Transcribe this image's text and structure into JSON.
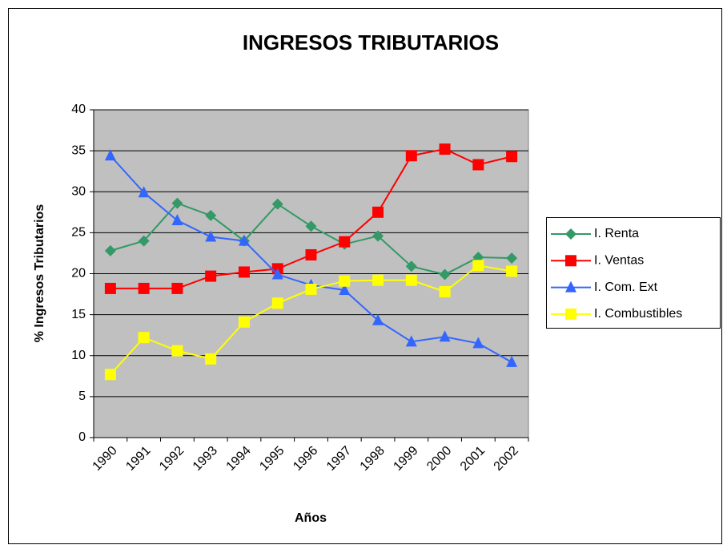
{
  "chart_data": {
    "type": "line",
    "title": "INGRESOS TRIBUTARIOS",
    "x_label": "Años",
    "y_label": "% Ingresos Tributarios",
    "categories": [
      "1990",
      "1991",
      "1992",
      "1993",
      "1994",
      "1995",
      "1996",
      "1997",
      "1998",
      "1999",
      "2000",
      "2001",
      "2002"
    ],
    "series": [
      {
        "name": "I. Renta",
        "color": "#339966",
        "marker": "diamond",
        "values": [
          22.8,
          24,
          28.6,
          27.1,
          24,
          28.5,
          25.8,
          23.6,
          24.6,
          20.9,
          19.9,
          22,
          21.9
        ]
      },
      {
        "name": "I. Ventas",
        "color": "#ff0000",
        "marker": "square",
        "values": [
          18.2,
          18.2,
          18.2,
          19.7,
          20.2,
          20.6,
          22.3,
          23.9,
          27.5,
          34.4,
          35.2,
          33.3,
          34.3
        ]
      },
      {
        "name": "I. Com. Ext",
        "color": "#3366ff",
        "marker": "triangle",
        "values": [
          34.4,
          29.9,
          26.5,
          24.5,
          24,
          19.9,
          18.6,
          18,
          14.3,
          11.7,
          12.3,
          11.5,
          9.2
        ]
      },
      {
        "name": "I. Combustibles",
        "color": "#ffff00",
        "marker": "square",
        "values": [
          7.7,
          12.2,
          10.6,
          9.6,
          14.1,
          16.4,
          18.1,
          19.1,
          19.2,
          19.2,
          17.8,
          21,
          20.3
        ]
      }
    ],
    "ylim": [
      0,
      40
    ],
    "yticks": [
      0,
      5,
      10,
      15,
      20,
      25,
      30,
      35,
      40
    ],
    "grid": true,
    "legend": "right"
  }
}
